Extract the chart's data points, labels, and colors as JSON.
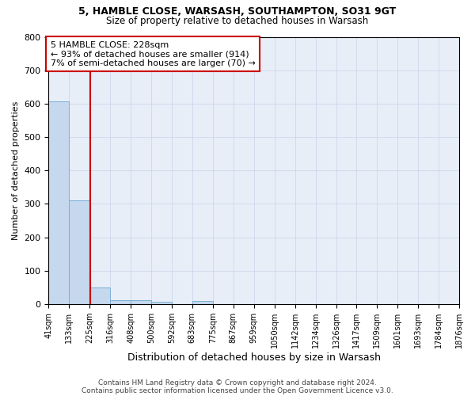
{
  "title1": "5, HAMBLE CLOSE, WARSASH, SOUTHAMPTON, SO31 9GT",
  "title2": "Size of property relative to detached houses in Warsash",
  "xlabel": "Distribution of detached houses by size in Warsash",
  "ylabel": "Number of detached properties",
  "footnote1": "Contains HM Land Registry data © Crown copyright and database right 2024.",
  "footnote2": "Contains public sector information licensed under the Open Government Licence v3.0.",
  "annotation_line1": "5 HAMBLE CLOSE: 228sqm",
  "annotation_line2": "← 93% of detached houses are smaller (914)",
  "annotation_line3": "7% of semi-detached houses are larger (70) →",
  "subject_value": 228,
  "bar_edges": [
    41,
    133,
    225,
    316,
    408,
    500,
    592,
    683,
    775,
    867,
    959,
    1050,
    1142,
    1234,
    1326,
    1417,
    1509,
    1601,
    1693,
    1784,
    1876
  ],
  "bar_heights": [
    606,
    310,
    50,
    11,
    11,
    7,
    0,
    8,
    0,
    0,
    0,
    0,
    0,
    0,
    0,
    0,
    0,
    0,
    0,
    0
  ],
  "bar_color": "#c5d8ed",
  "bar_edge_color": "#7aafd4",
  "vline_color": "#cc0000",
  "vline_x": 228,
  "annotation_box_color": "#cc0000",
  "ylim": [
    0,
    800
  ],
  "yticks": [
    0,
    100,
    200,
    300,
    400,
    500,
    600,
    700,
    800
  ],
  "grid_color": "#c8d4e8",
  "background_color": "#ffffff",
  "plot_bg_color": "#e8eef8"
}
